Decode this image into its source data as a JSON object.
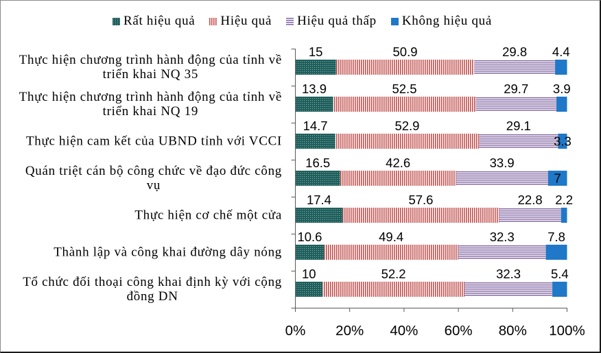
{
  "chart_data": {
    "type": "bar",
    "horizontal": true,
    "stacked_percent": true,
    "title": "",
    "xlabel": "",
    "ylabel": "",
    "legend": "top",
    "grid": false,
    "categories": [
      "Thực hiện chương trình hành động của tỉnh về\ntriển khai NQ 35",
      "Thực hiện chương trình hành động của tỉnh về\ntriển khai NQ 19",
      "Thực hiện cam kết của UBND tỉnh với VCCI",
      "Quán triệt cán bộ công chức về đạo đức công\nvụ",
      "Thực hiện cơ chế một cửa",
      "Thành lập và công khai đường dây nóng",
      "Tổ chức đối thoại công khai định kỳ với cộng\nđồng DN"
    ],
    "series": [
      {
        "name": "Rất hiệu quả",
        "color": "#1F5F5C",
        "values": [
          15,
          13.9,
          14.7,
          16.5,
          17.4,
          10.6,
          10
        ]
      },
      {
        "name": "Hiệu quả",
        "color": "#C0504D",
        "values": [
          50.9,
          52.5,
          52.9,
          42.6,
          57.6,
          49.4,
          52.2
        ]
      },
      {
        "name": "Hiệu quả thấp",
        "color": "#8064A2",
        "values": [
          29.8,
          29.7,
          29.1,
          33.9,
          22.8,
          32.3,
          32.3
        ]
      },
      {
        "name": "Không hiệu quả",
        "color": "#1F78C8",
        "values": [
          4.4,
          3.9,
          3.3,
          7,
          2.2,
          7.8,
          5.4
        ]
      }
    ],
    "xlim": [
      0,
      100
    ],
    "xticks": [
      0,
      20,
      40,
      60,
      80,
      100
    ],
    "xtick_labels": [
      "0%",
      "20%",
      "40%",
      "60%",
      "80%",
      "100%"
    ]
  }
}
